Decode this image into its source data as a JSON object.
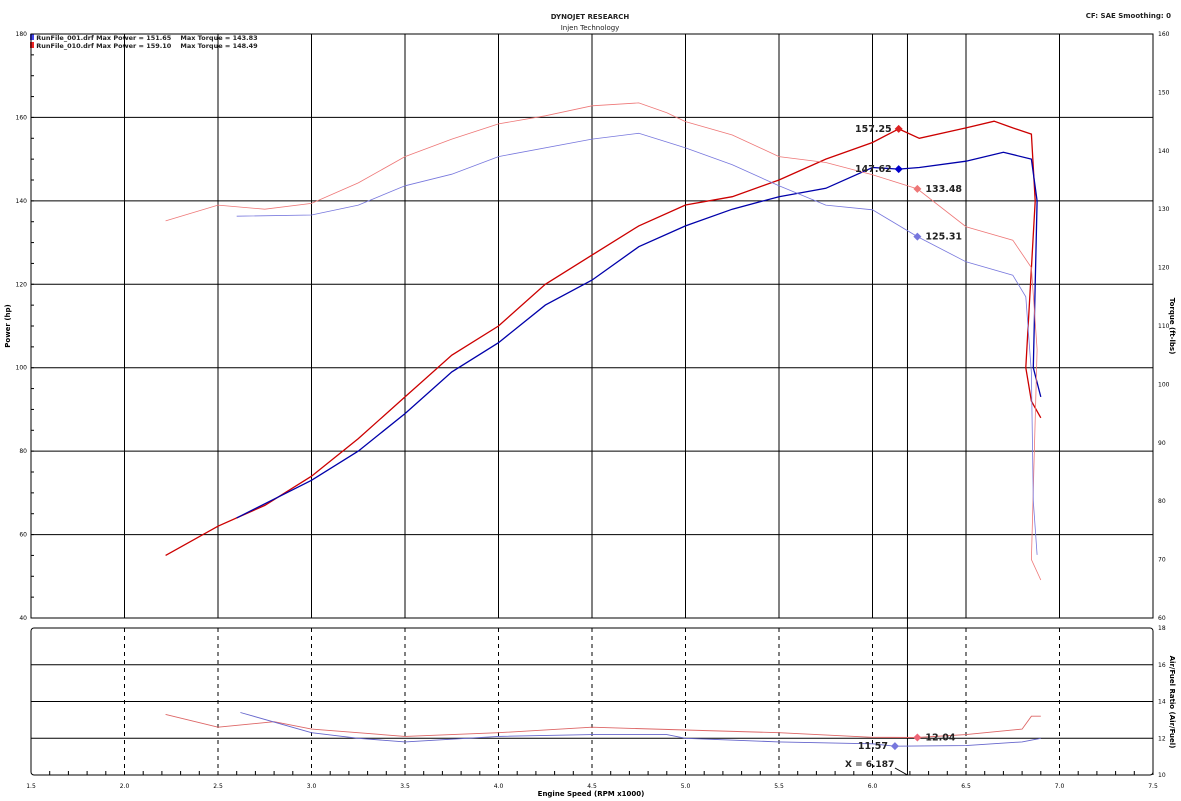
{
  "header": {
    "title": "DYNOJET RESEARCH",
    "subtitle": "Injen Technology",
    "settings": "CF: SAE  Smoothing: 0"
  },
  "legend": [
    {
      "file": "RunFile_001.drf",
      "power": "Max Power = 151.65",
      "torque": "Max Torque = 143.83",
      "color": "#0000cc"
    },
    {
      "file": "RunFile_010.drf",
      "power": "Max Power = 159.10",
      "torque": "Max Torque = 148.49",
      "color": "#dd0000"
    }
  ],
  "cursor": {
    "label": "X = 6.187",
    "x": 6.187
  },
  "chart_data": [
    {
      "type": "line",
      "xlabel": "Engine Speed (RPM x1000)",
      "ylabel": "Power (hp)",
      "y2label": "Torque (ft-lbs)",
      "xlim": [
        1.5,
        7.5
      ],
      "ylim": [
        40,
        180
      ],
      "y2lim": [
        60,
        160
      ],
      "xticks": [
        "1.5",
        "2.0",
        "2.5",
        "3.0",
        "3.5",
        "4.0",
        "4.5",
        "5.0",
        "5.5",
        "6.0",
        "6.5",
        "7.0",
        "7.5"
      ],
      "yticks": [
        "40",
        "60",
        "80",
        "100",
        "120",
        "140",
        "160",
        "180"
      ],
      "y2ticks": [
        "60",
        "70",
        "80",
        "90",
        "100",
        "110",
        "120",
        "130",
        "140",
        "150",
        "160"
      ],
      "grid": true,
      "legend_position": "top-left",
      "series": [
        {
          "name": "RunFile_010.drf",
          "measure": "power",
          "axis": "left",
          "color": "#cc0000",
          "x": [
            2.22,
            2.5,
            2.75,
            3.0,
            3.25,
            3.5,
            3.75,
            4.0,
            4.25,
            4.5,
            4.75,
            5.0,
            5.25,
            5.5,
            5.75,
            6.0,
            6.14,
            6.25,
            6.5,
            6.65,
            6.75,
            6.85,
            6.87,
            6.82,
            6.85,
            6.9
          ],
          "y": [
            55,
            62,
            67,
            74,
            83,
            93,
            103,
            110,
            120,
            127,
            134,
            139,
            141,
            145,
            150,
            154,
            157.25,
            155,
            157.5,
            159.1,
            157.5,
            156,
            140,
            100,
            92,
            88
          ]
        },
        {
          "name": "RunFile_001.drf",
          "measure": "power",
          "axis": "left",
          "color": "#0000aa",
          "x": [
            2.6,
            3.0,
            3.25,
            3.5,
            3.75,
            4.0,
            4.25,
            4.5,
            4.75,
            5.0,
            5.25,
            5.5,
            5.75,
            6.0,
            6.14,
            6.25,
            6.5,
            6.7,
            6.85,
            6.88,
            6.87,
            6.86,
            6.9
          ],
          "y": [
            64,
            73,
            80,
            89,
            99,
            106,
            115,
            121,
            129,
            134,
            138,
            141,
            143,
            148,
            147.62,
            148,
            149.5,
            151.65,
            150,
            140,
            120,
            100,
            93
          ]
        },
        {
          "name": "RunFile_010.drf",
          "measure": "torque",
          "axis": "right",
          "color": "#ee7777",
          "x": [
            2.22,
            2.5,
            2.75,
            3.0,
            3.25,
            3.5,
            3.75,
            4.0,
            4.25,
            4.5,
            4.75,
            4.9,
            5.0,
            5.25,
            5.5,
            5.75,
            6.0,
            6.24,
            6.5,
            6.75,
            6.85,
            6.88,
            6.85,
            6.9
          ],
          "y": [
            128,
            130.7,
            130,
            131,
            134.5,
            139,
            142,
            144.6,
            146,
            147.7,
            148.2,
            146.5,
            145,
            142.7,
            139,
            138,
            135.9,
            133.48,
            127,
            124.7,
            120,
            106,
            70,
            66.5
          ]
        },
        {
          "name": "RunFile_001.drf",
          "measure": "torque",
          "axis": "right",
          "color": "#7777dd",
          "x": [
            2.6,
            3.0,
            3.25,
            3.5,
            3.75,
            4.0,
            4.5,
            4.75,
            4.9,
            5.0,
            5.25,
            5.5,
            5.75,
            6.0,
            6.24,
            6.5,
            6.75,
            6.82,
            6.85,
            6.86,
            6.88
          ],
          "y": [
            128.8,
            129,
            130.7,
            134,
            136,
            139,
            142,
            143,
            141.5,
            140.5,
            137.6,
            134,
            130.7,
            129.9,
            125.31,
            121,
            118.7,
            115,
            102,
            80,
            70.8
          ]
        }
      ],
      "annotations": [
        {
          "text": "157.25",
          "x": 6.14,
          "y": 157.25,
          "axis": "left",
          "color": "#dd2222"
        },
        {
          "text": "147.62",
          "x": 6.14,
          "y": 147.62,
          "axis": "left",
          "color": "#0000cc"
        },
        {
          "text": "133.48",
          "x": 6.24,
          "y": 133.48,
          "axis": "right",
          "color": "#ee7777"
        },
        {
          "text": "125.31",
          "x": 6.24,
          "y": 125.31,
          "axis": "right",
          "color": "#7777dd"
        }
      ]
    },
    {
      "type": "line",
      "xlabel": "Engine Speed (RPM x1000)",
      "y2label": "Air/Fuel Ratio (Air/Fuel)",
      "xlim": [
        1.5,
        7.5
      ],
      "y2lim": [
        10,
        18
      ],
      "y2ticks": [
        "10",
        "12",
        "14",
        "16",
        "18"
      ],
      "grid": true,
      "series": [
        {
          "name": "RunFile_010.drf",
          "measure": "afr",
          "color": "#dd6666",
          "x": [
            2.22,
            2.5,
            2.8,
            3.0,
            3.5,
            4.0,
            4.5,
            5.0,
            5.5,
            6.0,
            6.24,
            6.5,
            6.8,
            6.85,
            6.9
          ],
          "y": [
            13.3,
            12.6,
            12.9,
            12.5,
            12.1,
            12.3,
            12.6,
            12.45,
            12.3,
            12.05,
            12.04,
            12.2,
            12.5,
            13.2,
            13.2
          ]
        },
        {
          "name": "RunFile_001.drf",
          "measure": "afr",
          "color": "#6666cc",
          "x": [
            2.62,
            3.0,
            3.25,
            3.5,
            4.0,
            4.5,
            4.9,
            5.0,
            5.5,
            6.0,
            6.12,
            6.5,
            6.8,
            6.9
          ],
          "y": [
            13.4,
            12.3,
            12.0,
            11.8,
            12.1,
            12.2,
            12.2,
            12.0,
            11.8,
            11.7,
            11.57,
            11.6,
            11.8,
            12.0
          ]
        }
      ],
      "annotations": [
        {
          "text": "12.04",
          "x": 6.24,
          "y": 12.04,
          "color": "#ee6677"
        },
        {
          "text": "11.57",
          "x": 6.12,
          "y": 11.57,
          "color": "#7777dd"
        }
      ]
    }
  ]
}
